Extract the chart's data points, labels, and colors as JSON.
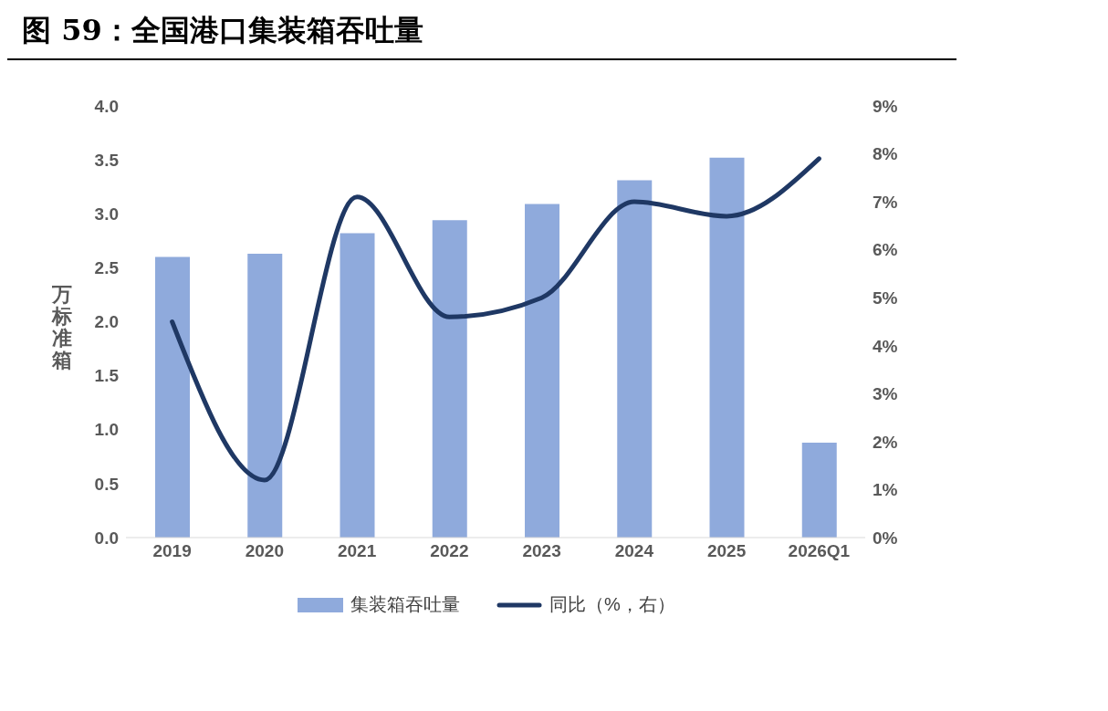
{
  "chart_data": {
    "type": "bar",
    "title": "图 59：全国港口集装箱吞吐量",
    "ylabel": "万标准箱",
    "categories": [
      "2019",
      "2020",
      "2021",
      "2022",
      "2023",
      "2024",
      "2025",
      "2026Q1"
    ],
    "series": [
      {
        "name": "集装箱吞吐量",
        "color": "#8faadc",
        "values": [
          2.6,
          2.63,
          2.82,
          2.94,
          3.09,
          3.31,
          3.52,
          0.88
        ]
      },
      {
        "name": "同比（%，右）",
        "type": "line",
        "axis": "y2",
        "color": "#1f3864",
        "values": [
          4.5,
          1.2,
          7.1,
          4.6,
          5.0,
          7.0,
          6.7,
          7.9
        ]
      }
    ],
    "ylim": [
      0,
      4
    ],
    "yticks": [
      {
        "value": 0,
        "label": "0.0"
      },
      {
        "value": 0.5,
        "label": "0.5"
      },
      {
        "value": 1,
        "label": "1.0"
      },
      {
        "value": 1.5,
        "label": "1.5"
      },
      {
        "value": 2,
        "label": "2.0"
      },
      {
        "value": 2.5,
        "label": "2.5"
      },
      {
        "value": 3,
        "label": "3.0"
      },
      {
        "value": 3.5,
        "label": "3.5"
      },
      {
        "value": 4,
        "label": "4.0"
      }
    ],
    "y2lim": [
      0,
      9
    ],
    "y2ticks": [
      {
        "value": 0,
        "label": "0%"
      },
      {
        "value": 1,
        "label": "1%"
      },
      {
        "value": 2,
        "label": "2%"
      },
      {
        "value": 3,
        "label": "3%"
      },
      {
        "value": 4,
        "label": "4%"
      },
      {
        "value": 5,
        "label": "5%"
      },
      {
        "value": 6,
        "label": "6%"
      },
      {
        "value": 7,
        "label": "7%"
      },
      {
        "value": 8,
        "label": "8%"
      },
      {
        "value": 9,
        "label": "9%"
      }
    ],
    "grid": false,
    "legend": "bottom",
    "marker": "none"
  }
}
